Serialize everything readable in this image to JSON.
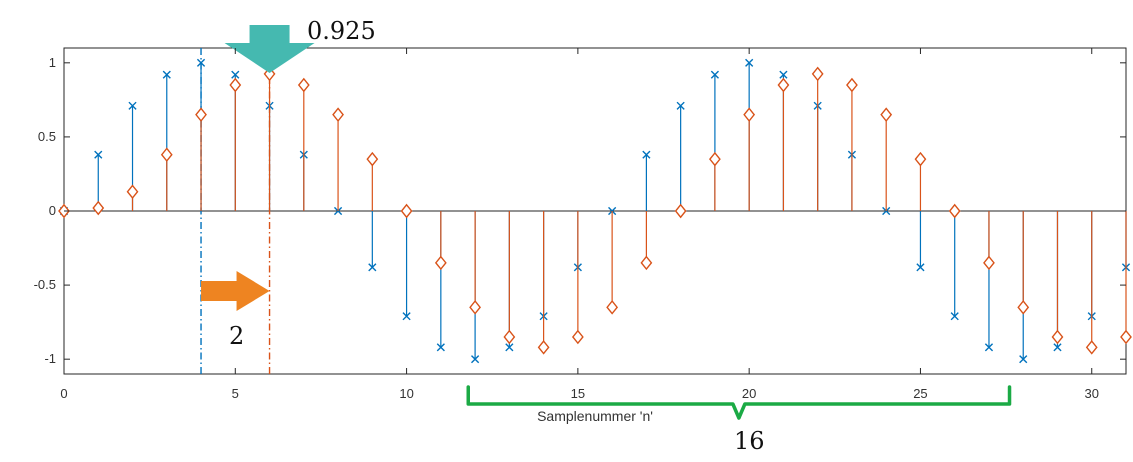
{
  "chart_data": {
    "type": "stem",
    "xlabel": "Samplenummer 'n'",
    "xlim": [
      0,
      31
    ],
    "ylim": [
      -1.1,
      1.1
    ],
    "xticks": [
      0,
      5,
      10,
      15,
      20,
      25,
      30
    ],
    "yticks": [
      -1,
      -0.5,
      0,
      0.5,
      1
    ],
    "ytick_labels": [
      "-1",
      "-0.5",
      "0",
      "0.5",
      "1"
    ],
    "grid": false,
    "series": [
      {
        "marker": "x",
        "color": "#0072BD",
        "x": [
          0,
          1,
          2,
          3,
          4,
          5,
          6,
          7,
          8,
          9,
          10,
          11,
          12,
          13,
          14,
          15,
          16,
          17,
          18,
          19,
          20,
          21,
          22,
          23,
          24,
          25,
          26,
          27,
          28,
          29,
          30,
          31
        ],
        "values": [
          0,
          0.38,
          0.71,
          0.92,
          1.0,
          0.92,
          0.71,
          0.38,
          0,
          -0.38,
          -0.71,
          -0.92,
          -1.0,
          -0.92,
          -0.71,
          -0.38,
          0,
          0.38,
          0.71,
          0.92,
          1.0,
          0.92,
          0.71,
          0.38,
          0,
          -0.38,
          -0.71,
          -0.92,
          -1.0,
          -0.92,
          -0.71,
          -0.38
        ]
      },
      {
        "marker": "diamond",
        "color": "#D95319",
        "x": [
          0,
          1,
          2,
          3,
          4,
          5,
          6,
          7,
          8,
          9,
          10,
          11,
          12,
          13,
          14,
          15,
          16,
          17,
          18,
          19,
          20,
          21,
          22,
          23,
          24,
          25,
          26,
          27,
          28,
          29,
          30,
          31
        ],
        "values": [
          0,
          0.02,
          0.13,
          0.38,
          0.65,
          0.85,
          0.925,
          0.85,
          0.65,
          0.35,
          0,
          -0.35,
          -0.65,
          -0.85,
          -0.92,
          -0.85,
          -0.65,
          -0.35,
          0,
          0.35,
          0.65,
          0.85,
          0.925,
          0.85,
          0.65,
          0.35,
          0,
          -0.35,
          -0.65,
          -0.85,
          -0.92,
          -0.85
        ]
      }
    ],
    "annotations": {
      "peak_value_label": "0.925",
      "shift_label": "2",
      "period_label": "16",
      "vertical_lines": [
        4,
        6
      ],
      "peak_marker_x": 6,
      "shift_arrow_x": [
        4,
        6
      ],
      "period_brace_x": [
        11.8,
        27.6
      ]
    },
    "colors": {
      "axes": "#262626",
      "zero_line": "#262626",
      "blue_series": "#0072BD",
      "orange_series": "#D95319",
      "teal_arrow": "#45B9B0",
      "orange_arrow": "#EE8421",
      "green_brace": "#1BAA45"
    }
  }
}
